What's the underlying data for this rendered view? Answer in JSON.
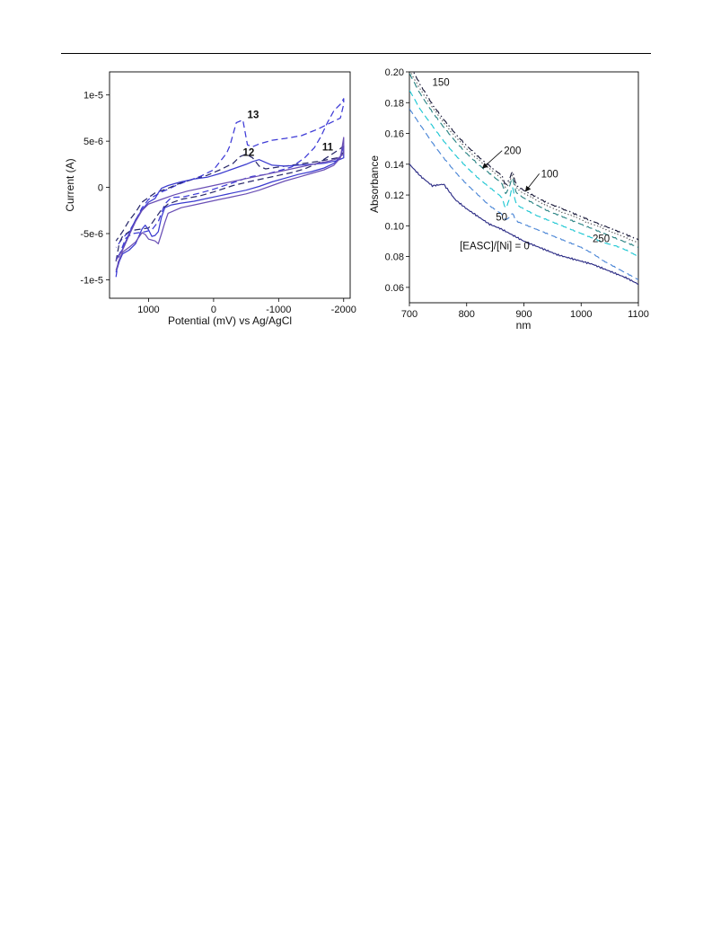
{
  "chart_data": [
    {
      "type": "line",
      "title": "",
      "xlabel": "Potential (mV) vs Ag/AgCl",
      "ylabel": "Current (A)",
      "x_reversed": true,
      "xlim": [
        1600,
        -2100
      ],
      "ylim": [
        -1.2e-05,
        1.25e-05
      ],
      "xticks": [
        {
          "value": 1000,
          "label": "1000"
        },
        {
          "value": 0,
          "label": "0"
        },
        {
          "value": -1000,
          "label": "-1000"
        },
        {
          "value": -2000,
          "label": "-2000"
        }
      ],
      "yticks": [
        {
          "value": 1e-05,
          "label": "1e-5"
        },
        {
          "value": 5e-06,
          "label": "5e-6"
        },
        {
          "value": 0,
          "label": "0"
        },
        {
          "value": -5e-06,
          "label": "-5e-6"
        },
        {
          "value": -1e-05,
          "label": "-1e-5"
        }
      ],
      "grid": false,
      "annotations": [
        {
          "text": "13",
          "x": -520,
          "y": 7.5e-06
        },
        {
          "text": "12",
          "x": -450,
          "y": 3.4e-06
        },
        {
          "text": "11",
          "x": -1670,
          "y": 4e-06
        }
      ],
      "series": [
        {
          "style": "dashed",
          "color": "#3d3ad6",
          "x": [
            1500,
            1450,
            1350,
            1250,
            1150,
            1050,
            950,
            850,
            750,
            650,
            450,
            200,
            0,
            -300,
            -500,
            -600,
            -700,
            -800,
            -1000,
            -1200,
            -1400,
            -1550,
            -1650,
            -1750,
            -1850,
            -1950,
            -2000,
            -2000,
            -1950,
            -1800,
            -1600,
            -1350,
            -1100,
            -900,
            -700,
            -600,
            -520,
            -450,
            -350,
            -250,
            -200,
            -100,
            0,
            200,
            400,
            550,
            700,
            800,
            900,
            1000,
            1100,
            1200,
            1300,
            1400,
            1450,
            1500
          ],
          "y": [
            -9.7e-06,
            -7.3e-06,
            -5.5e-06,
            -5e-06,
            -4.9e-06,
            -4.8e-06,
            -4.6e-06,
            -3.7e-06,
            -1.8e-06,
            -1.1e-06,
            -1e-06,
            -6e-07,
            -2e-07,
            5e-07,
            1e-06,
            1.2e-06,
            1.3e-06,
            1.4e-06,
            1.8e-06,
            2.2e-06,
            3.2e-06,
            4.3e-06,
            5.5e-06,
            7e-06,
            8.3e-06,
            9e-06,
            9.6e-06,
            9e-06,
            7.5e-06,
            7e-06,
            6.3e-06,
            5.6e-06,
            5.3e-06,
            5.1e-06,
            4.7e-06,
            4.4e-06,
            4.6e-06,
            7.3e-06,
            7e-06,
            4.5e-06,
            3.7e-06,
            2.8e-06,
            1.9e-06,
            1.2e-06,
            7e-07,
            3e-07,
            -2e-07,
            -5e-07,
            -9e-07,
            -1.3e-06,
            -2.2e-06,
            -3.6e-06,
            -4.8e-06,
            -5.5e-06,
            -6e-06,
            -6.5e-06
          ]
        },
        {
          "style": "dashed",
          "color": "#2a2a6b",
          "x": [
            1500,
            1450,
            1400,
            1300,
            1200,
            1100,
            1000,
            900,
            800,
            700,
            500,
            200,
            0,
            -300,
            -600,
            -800,
            -1000,
            -1200,
            -1400,
            -1600,
            -1800,
            -1950,
            -2000,
            -2000,
            -1900,
            -1750,
            -1600,
            -1400,
            -1200,
            -1000,
            -800,
            -700,
            -600,
            -500,
            -400,
            -300,
            -100,
            100,
            300,
            500,
            700,
            900,
            1100,
            1200,
            1300,
            1400,
            1500
          ],
          "y": [
            -8e-06,
            -6e-06,
            -5.3e-06,
            -4.8e-06,
            -4.6e-06,
            -4.5e-06,
            -4.4e-06,
            -3.4e-06,
            -2.4e-06,
            -1.8e-06,
            -1.3e-06,
            -9e-07,
            -5e-07,
            2e-07,
            7e-07,
            1e-06,
            1.3e-06,
            1.6e-06,
            2e-06,
            2.6e-06,
            3.5e-06,
            4.2e-06,
            4.5e-06,
            3.8e-06,
            3.2e-06,
            3e-06,
            2.8e-06,
            2.6e-06,
            2.4e-06,
            2.2e-06,
            2e-06,
            2.3e-06,
            3.2e-06,
            3.6e-06,
            3.3e-06,
            2.6e-06,
            1.9e-06,
            1.3e-06,
            9e-07,
            5e-07,
            -1e-07,
            -6e-07,
            -1.6e-06,
            -2.7e-06,
            -3.6e-06,
            -4.8e-06,
            -5.8e-06
          ]
        },
        {
          "style": "solid",
          "color": "#3b3bcf",
          "x": [
            1500,
            1450,
            1400,
            1300,
            1200,
            1100,
            1050,
            1000,
            950,
            900,
            850,
            800,
            750,
            650,
            500,
            300,
            100,
            -100,
            -300,
            -500,
            -700,
            -900,
            -1100,
            -1300,
            -1500,
            -1700,
            -1850,
            -1950,
            -2000,
            -2000,
            -1900,
            -1700,
            -1500,
            -1300,
            -1100,
            -900,
            -800,
            -700,
            -600,
            -500,
            -300,
            -100,
            100,
            300,
            500,
            700,
            800,
            850,
            900,
            1000,
            1100,
            1200,
            1300,
            1400,
            1500
          ],
          "y": [
            -9.2e-06,
            -8e-06,
            -7.2e-06,
            -6.8e-06,
            -6.1e-06,
            -4.5e-06,
            -4.1e-06,
            -4.6e-06,
            -5.3e-06,
            -5.2e-06,
            -4.8e-06,
            -3.2e-06,
            -2.2e-06,
            -1.9e-06,
            -1.7e-06,
            -1.5e-06,
            -1.2e-06,
            -9e-07,
            -6e-07,
            -3e-07,
            1e-07,
            6e-07,
            1e-06,
            1.4e-06,
            1.7e-06,
            2.1e-06,
            2.6e-06,
            3.3e-06,
            4.5e-06,
            3.2e-06,
            2.9e-06,
            2.6e-06,
            2.5e-06,
            2.4e-06,
            2.3e-06,
            2.4e-06,
            2.7e-06,
            3e-06,
            2.8e-06,
            2.5e-06,
            2e-06,
            1.5e-06,
            1.1e-06,
            9e-07,
            6e-07,
            2e-07,
            -1e-07,
            -6e-07,
            -1.2e-06,
            -1.6e-06,
            -2.4e-06,
            -3.5e-06,
            -5e-06,
            -6.7e-06,
            -7.8e-06
          ]
        },
        {
          "style": "solid",
          "color": "#6a4fb5",
          "x": [
            1500,
            1450,
            1400,
            1300,
            1200,
            1150,
            1100,
            1050,
            1000,
            900,
            850,
            800,
            750,
            700,
            500,
            300,
            100,
            -100,
            -300,
            -500,
            -700,
            -900,
            -1100,
            -1300,
            -1500,
            -1700,
            -1850,
            -1950,
            -2000,
            -2000,
            -1900,
            -1750,
            -1600,
            -1400,
            -1200,
            -1000,
            -800,
            -600,
            -400,
            -200,
            0,
            200,
            400,
            600,
            800,
            1000,
            1100,
            1200,
            1300,
            1400,
            1500
          ],
          "y": [
            -9e-06,
            -7.8e-06,
            -7e-06,
            -6.5e-06,
            -5.9e-06,
            -5.4e-06,
            -4.9e-06,
            -5.1e-06,
            -5.6e-06,
            -5.8e-06,
            -6.1e-06,
            -5e-06,
            -3.8e-06,
            -2.8e-06,
            -2.2e-06,
            -1.9e-06,
            -1.6e-06,
            -1.3e-06,
            -1e-06,
            -7e-07,
            -3e-07,
            2e-07,
            7e-07,
            1.1e-06,
            1.5e-06,
            1.9e-06,
            2.4e-06,
            3.2e-06,
            5.4e-06,
            3.6e-06,
            3.1e-06,
            2.8e-06,
            2.6e-06,
            2.3e-06,
            2e-06,
            1.7e-06,
            1.4e-06,
            1.1e-06,
            8e-07,
            5e-07,
            2e-07,
            -1e-07,
            -4e-07,
            -8e-07,
            -1.3e-06,
            -1.8e-06,
            -2.5e-06,
            -3.7e-06,
            -5.2e-06,
            -6.8e-06,
            -7.9e-06
          ]
        }
      ]
    },
    {
      "type": "line",
      "title": "",
      "xlabel": "nm",
      "ylabel": "Absorbance",
      "xlim": [
        700,
        1100
      ],
      "ylim": [
        0.05,
        0.2
      ],
      "xticks": [
        {
          "value": 700,
          "label": "700"
        },
        {
          "value": 800,
          "label": "800"
        },
        {
          "value": 900,
          "label": "900"
        },
        {
          "value": 1000,
          "label": "1000"
        },
        {
          "value": 1100,
          "label": "1100"
        }
      ],
      "yticks": [
        {
          "value": 0.06,
          "label": "0.06"
        },
        {
          "value": 0.08,
          "label": "0.08"
        },
        {
          "value": 0.1,
          "label": "0.10"
        },
        {
          "value": 0.12,
          "label": "0.12"
        },
        {
          "value": 0.14,
          "label": "0.14"
        },
        {
          "value": 0.16,
          "label": "0.16"
        },
        {
          "value": 0.18,
          "label": "0.18"
        },
        {
          "value": 0.2,
          "label": "0.20"
        }
      ],
      "grid": false,
      "annotations": [
        {
          "text": "150",
          "x": 740,
          "y": 0.191,
          "arrow": false
        },
        {
          "text": "200",
          "x": 865,
          "y": 0.1465,
          "arrow": true,
          "arrow_to": {
            "x": 828,
            "y": 0.1375
          }
        },
        {
          "text": "100",
          "x": 930,
          "y": 0.1315,
          "arrow": true,
          "arrow_to": {
            "x": 903,
            "y": 0.1225
          }
        },
        {
          "text": "50",
          "x": 851,
          "y": 0.1035,
          "arrow": false
        },
        {
          "text": "250",
          "x": 1020,
          "y": 0.0895,
          "arrow": false
        },
        {
          "text": "[EASC]/[Ni] = 0",
          "x": 788,
          "y": 0.0848,
          "arrow": false
        }
      ],
      "series": [
        {
          "name": "[EASC]/[Ni] = 0",
          "style": "solid",
          "color": "#2e2e86",
          "bump": 0,
          "noise": 0.0006,
          "x": [
            700,
            720,
            740,
            760,
            780,
            800,
            820,
            840,
            860,
            880,
            900,
            920,
            940,
            960,
            980,
            1000,
            1020,
            1040,
            1060,
            1080,
            1100
          ],
          "y": [
            0.14,
            0.132,
            0.126,
            0.127,
            0.117,
            0.111,
            0.106,
            0.101,
            0.098,
            0.094,
            0.09,
            0.087,
            0.084,
            0.081,
            0.079,
            0.077,
            0.075,
            0.072,
            0.069,
            0.066,
            0.062
          ]
        },
        {
          "name": "50",
          "style": "dashed",
          "color": "#4b86d6",
          "bump": 0.004,
          "noise": 0.0003,
          "x": [
            700,
            720,
            740,
            760,
            780,
            800,
            820,
            840,
            860,
            880,
            900,
            920,
            940,
            960,
            980,
            1000,
            1020,
            1040,
            1060,
            1080,
            1100
          ],
          "y": [
            0.176,
            0.165,
            0.154,
            0.144,
            0.135,
            0.127,
            0.12,
            0.113,
            0.108,
            0.104,
            0.101,
            0.098,
            0.095,
            0.092,
            0.089,
            0.086,
            0.082,
            0.077,
            0.073,
            0.069,
            0.065
          ]
        },
        {
          "name": "250",
          "style": "dashed",
          "color": "#1ec7d3",
          "bump": 0.01,
          "noise": 0.0003,
          "x": [
            700,
            720,
            740,
            760,
            780,
            800,
            820,
            840,
            860,
            880,
            900,
            920,
            940,
            960,
            980,
            1000,
            1020,
            1040,
            1060,
            1080,
            1100
          ],
          "y": [
            0.188,
            0.175,
            0.165,
            0.155,
            0.146,
            0.138,
            0.131,
            0.125,
            0.119,
            0.115,
            0.111,
            0.107,
            0.104,
            0.101,
            0.098,
            0.095,
            0.092,
            0.089,
            0.087,
            0.084,
            0.08
          ]
        },
        {
          "name": "100",
          "style": "dashed",
          "color": "#2c8585",
          "bump": 0.008,
          "noise": 0.0004,
          "x": [
            700,
            720,
            740,
            760,
            780,
            800,
            820,
            840,
            860,
            880,
            900,
            920,
            940,
            960,
            980,
            1000,
            1020,
            1040,
            1060,
            1080,
            1100
          ],
          "y": [
            0.199,
            0.185,
            0.174,
            0.164,
            0.155,
            0.147,
            0.14,
            0.134,
            0.128,
            0.123,
            0.118,
            0.114,
            0.11,
            0.107,
            0.104,
            0.101,
            0.098,
            0.095,
            0.092,
            0.089,
            0.086
          ]
        },
        {
          "name": "200",
          "style": "dotted",
          "color": "#666666",
          "bump": 0.007,
          "noise": 0.0005,
          "x": [
            700,
            720,
            740,
            760,
            780,
            800,
            820,
            840,
            860,
            880,
            900,
            920,
            940,
            960,
            980,
            1000,
            1020,
            1040,
            1060,
            1080,
            1100
          ],
          "y": [
            0.201,
            0.188,
            0.177,
            0.167,
            0.158,
            0.15,
            0.143,
            0.137,
            0.131,
            0.126,
            0.121,
            0.117,
            0.113,
            0.11,
            0.107,
            0.104,
            0.101,
            0.098,
            0.095,
            0.092,
            0.089
          ]
        },
        {
          "name": "150",
          "style": "dashdot",
          "color": "#1a1a3a",
          "bump": 0.007,
          "noise": 0.0005,
          "x": [
            700,
            720,
            740,
            760,
            780,
            800,
            820,
            840,
            860,
            880,
            900,
            920,
            940,
            960,
            980,
            1000,
            1020,
            1040,
            1060,
            1080,
            1100
          ],
          "y": [
            0.205,
            0.191,
            0.179,
            0.169,
            0.16,
            0.152,
            0.145,
            0.139,
            0.133,
            0.128,
            0.123,
            0.119,
            0.115,
            0.112,
            0.109,
            0.106,
            0.103,
            0.1,
            0.097,
            0.094,
            0.091
          ]
        }
      ]
    }
  ]
}
